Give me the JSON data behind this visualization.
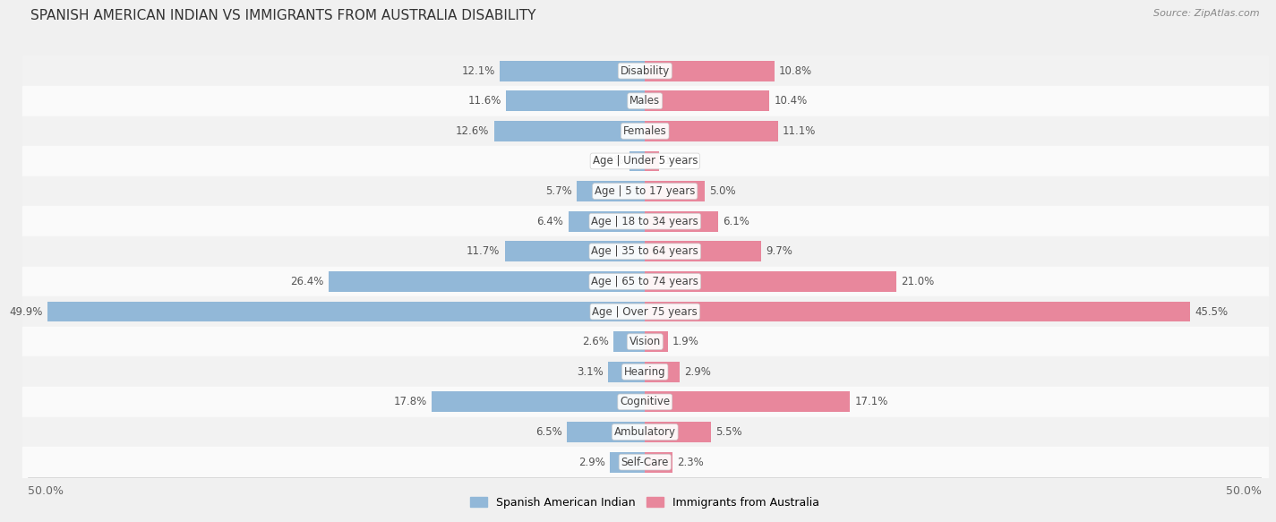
{
  "title": "SPANISH AMERICAN INDIAN VS IMMIGRANTS FROM AUSTRALIA DISABILITY",
  "source": "Source: ZipAtlas.com",
  "categories": [
    "Disability",
    "Males",
    "Females",
    "Age | Under 5 years",
    "Age | 5 to 17 years",
    "Age | 18 to 34 years",
    "Age | 35 to 64 years",
    "Age | 65 to 74 years",
    "Age | Over 75 years",
    "Vision",
    "Hearing",
    "Cognitive",
    "Ambulatory",
    "Self-Care"
  ],
  "left_values": [
    12.1,
    11.6,
    12.6,
    1.3,
    5.7,
    6.4,
    11.7,
    26.4,
    49.9,
    2.6,
    3.1,
    17.8,
    6.5,
    2.9
  ],
  "right_values": [
    10.8,
    10.4,
    11.1,
    1.2,
    5.0,
    6.1,
    9.7,
    21.0,
    45.5,
    1.9,
    2.9,
    17.1,
    5.5,
    2.3
  ],
  "left_color": "#92b8d8",
  "right_color": "#e8879c",
  "left_label": "Spanish American Indian",
  "right_label": "Immigrants from Australia",
  "max_value": 50.0,
  "bg_light": "#f0f0f0",
  "row_even": "#f2f2f2",
  "row_odd": "#fafafa",
  "title_fontsize": 11,
  "source_fontsize": 8,
  "val_fontsize": 8.5,
  "cat_fontsize": 8.5,
  "legend_fontsize": 9,
  "tick_fontsize": 9
}
